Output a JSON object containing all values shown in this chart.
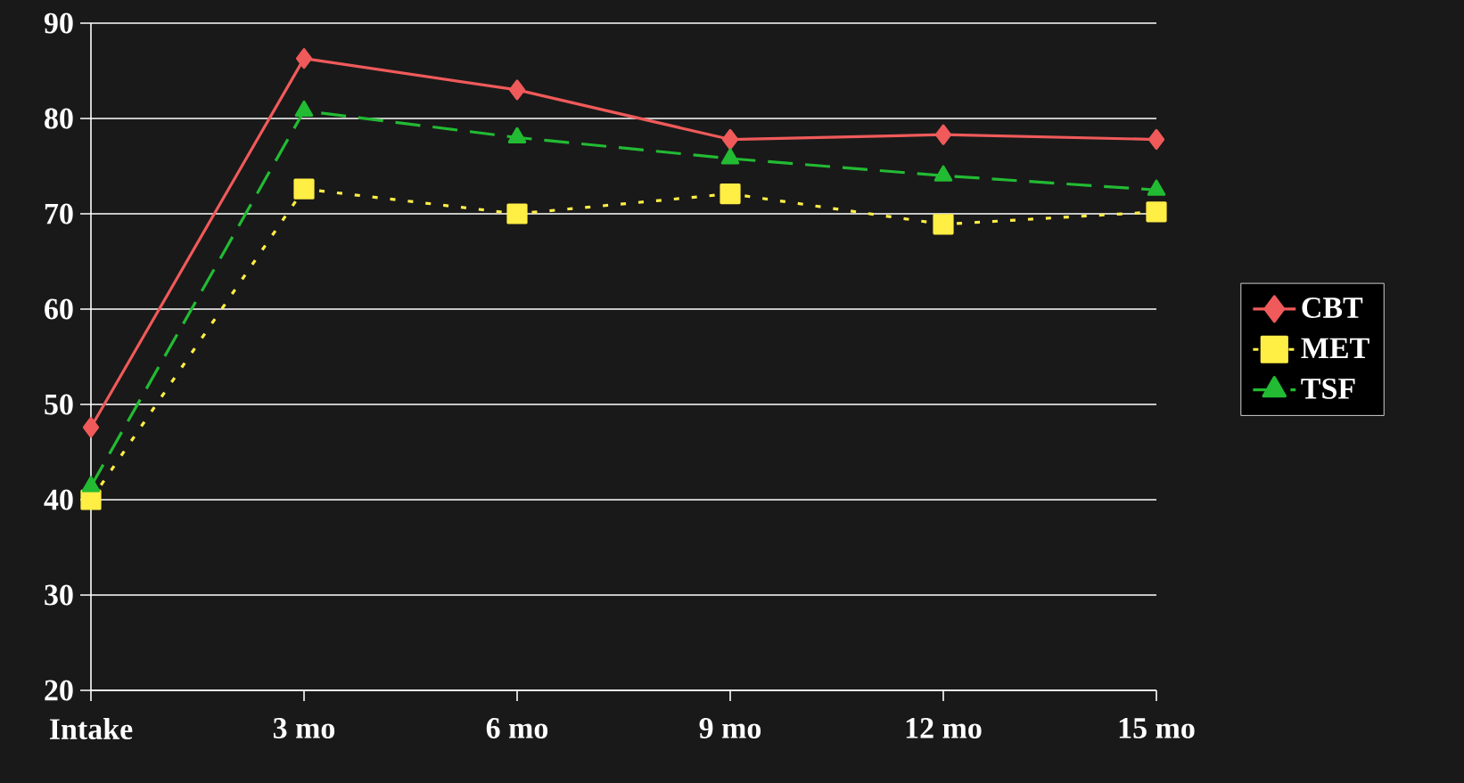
{
  "chart_data": {
    "type": "line",
    "categories": [
      "Intake",
      "3 mo",
      "6 mo",
      "9 mo",
      "12 mo",
      "15 mo"
    ],
    "ylim": [
      20,
      90
    ],
    "yticks": [
      20,
      30,
      40,
      50,
      60,
      70,
      80,
      90
    ],
    "grid": "y",
    "legend": "right",
    "series": [
      {
        "name": "CBT",
        "color": "#f05a5a",
        "marker": "diamond",
        "line_style": "solid",
        "values": [
          47.6,
          86.3,
          83,
          77.8,
          78.3,
          77.8
        ]
      },
      {
        "name": "MET",
        "color": "#ffee44",
        "marker": "square",
        "line_style": "dotted",
        "values": [
          40,
          72.6,
          70,
          72.1,
          68.9,
          70.2
        ]
      },
      {
        "name": "TSF",
        "color": "#22bb33",
        "marker": "triangle",
        "line_style": "dashed",
        "values": [
          41.4,
          80.8,
          78,
          75.8,
          74,
          72.5
        ]
      }
    ]
  }
}
